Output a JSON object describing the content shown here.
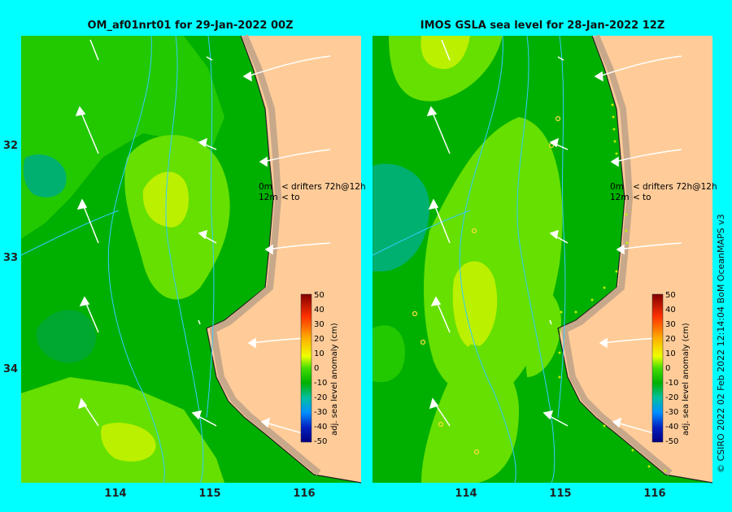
{
  "panels": [
    {
      "title": "OM_af01nrt01 for 29-Jan-2022 00Z",
      "legend": {
        "line1_depth": "0m",
        "line1_text": "drifters 72h@12h",
        "line2_depth": "12m",
        "line2_text": "to"
      }
    },
    {
      "title": "IMOS GSLA sea level  for 28-Jan-2022 12Z",
      "legend": {
        "line1_depth": "0m",
        "line1_text": "drifters 72h@12h",
        "line2_depth": "12m",
        "line2_text": "to"
      }
    }
  ],
  "colorbar": {
    "label": "adj. sea level anomaly (cm)",
    "ticks": [
      "50",
      "40",
      "30",
      "20",
      "10",
      "0",
      "-10",
      "-20",
      "-30",
      "-40",
      "-50"
    ]
  },
  "axes": {
    "y_ticks": [
      "32",
      "33",
      "34"
    ],
    "x_ticks_left": [
      "114",
      "115",
      "116"
    ],
    "x_ticks_right": [
      "114",
      "115",
      "116"
    ]
  },
  "credit": "© CSIRO 2022   02 Feb 2022 12:14:04 BoM OceanMAPS v3",
  "colors": {
    "land": "#ffcc99",
    "shelf": "#c8a88a",
    "frame": "#00ffff",
    "sea_green_dark": "#00b000",
    "sea_green": "#22c800",
    "sea_light": "#66e000",
    "sea_yellow": "#bbf000",
    "sea_teal": "#00b070",
    "legend_arrow": "#ff33ff"
  }
}
